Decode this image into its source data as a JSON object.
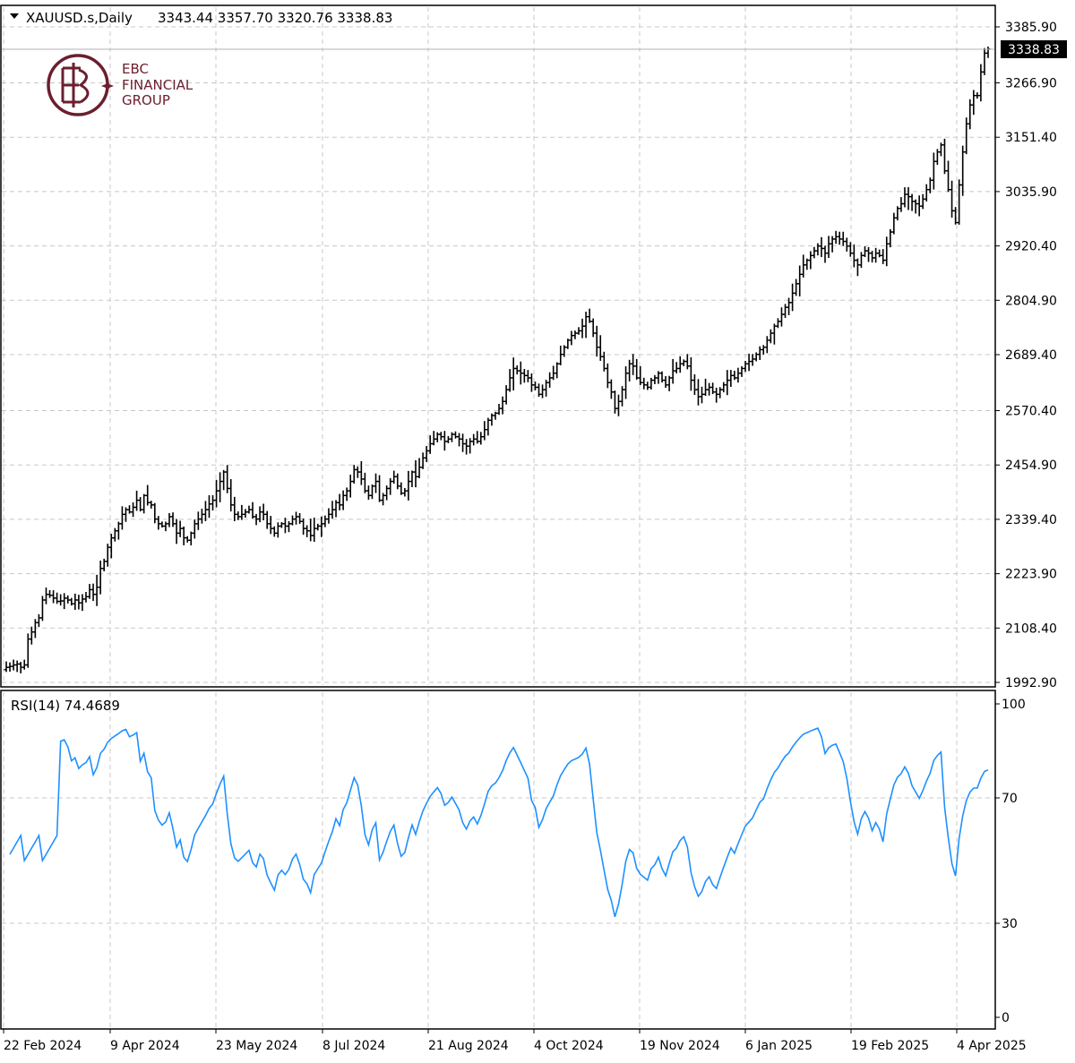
{
  "header": {
    "arrow_icon": "triangle-down-icon",
    "symbol": "XAUUSD.s,Daily",
    "ohlc": "3343.44 3357.70 3320.76 3338.83"
  },
  "logo": {
    "line1": "EBC",
    "line2": "FINANCIAL",
    "line3": "GROUP",
    "color": "#6b1f2e"
  },
  "colors": {
    "bars": "#000000",
    "grid": "#c8c8c8",
    "rsi": "#1e90ff",
    "frame": "#000000",
    "price_tag_bg": "#000000",
    "price_tag_text": "#ffffff"
  },
  "chart_data": [
    {
      "type": "ohlc",
      "series_name": "XAUUSD.s,Daily",
      "y_ticks": [
        "3385.90",
        "3266.90",
        "3151.40",
        "3035.90",
        "2920.40",
        "2804.90",
        "2689.40",
        "2570.40",
        "2454.90",
        "2339.40",
        "2223.90",
        "2108.40",
        "1992.90"
      ],
      "ylim": [
        1992.9,
        3385.9
      ],
      "current_price": "3338.83",
      "grid": true,
      "closes": [
        2025,
        2027,
        2030,
        2032,
        2025,
        2030,
        2085,
        2100,
        2120,
        2130,
        2168,
        2180,
        2178,
        2172,
        2165,
        2166,
        2172,
        2168,
        2160,
        2168,
        2162,
        2170,
        2175,
        2190,
        2180,
        2195,
        2235,
        2250,
        2280,
        2300,
        2315,
        2330,
        2350,
        2360,
        2355,
        2365,
        2380,
        2360,
        2390,
        2375,
        2370,
        2340,
        2330,
        2325,
        2330,
        2345,
        2330,
        2310,
        2320,
        2300,
        2295,
        2310,
        2330,
        2340,
        2350,
        2360,
        2372,
        2380,
        2400,
        2420,
        2440,
        2405,
        2370,
        2350,
        2345,
        2350,
        2355,
        2360,
        2345,
        2340,
        2355,
        2350,
        2330,
        2320,
        2310,
        2325,
        2330,
        2325,
        2330,
        2340,
        2345,
        2335,
        2320,
        2315,
        2305,
        2320,
        2325,
        2330,
        2340,
        2350,
        2360,
        2375,
        2370,
        2390,
        2400,
        2420,
        2445,
        2440,
        2425,
        2400,
        2390,
        2410,
        2420,
        2380,
        2390,
        2405,
        2420,
        2430,
        2410,
        2395,
        2400,
        2420,
        2440,
        2430,
        2450,
        2470,
        2485,
        2500,
        2510,
        2520,
        2515,
        2505,
        2510,
        2520,
        2515,
        2510,
        2500,
        2495,
        2505,
        2510,
        2505,
        2515,
        2530,
        2550,
        2560,
        2565,
        2575,
        2590,
        2615,
        2640,
        2660,
        2655,
        2650,
        2645,
        2640,
        2625,
        2620,
        2605,
        2615,
        2630,
        2640,
        2650,
        2670,
        2690,
        2705,
        2720,
        2730,
        2735,
        2740,
        2750,
        2770,
        2760,
        2735,
        2705,
        2685,
        2660,
        2630,
        2610,
        2575,
        2590,
        2615,
        2650,
        2670,
        2665,
        2640,
        2630,
        2625,
        2620,
        2635,
        2640,
        2650,
        2635,
        2625,
        2640,
        2655,
        2660,
        2670,
        2675,
        2665,
        2635,
        2615,
        2600,
        2605,
        2615,
        2620,
        2610,
        2605,
        2615,
        2625,
        2635,
        2645,
        2640,
        2650,
        2660,
        2670,
        2675,
        2680,
        2690,
        2700,
        2705,
        2720,
        2735,
        2750,
        2760,
        2775,
        2790,
        2800,
        2820,
        2840,
        2860,
        2880,
        2890,
        2900,
        2910,
        2920,
        2915,
        2905,
        2925,
        2935,
        2940,
        2935,
        2930,
        2920,
        2905,
        2890,
        2880,
        2900,
        2910,
        2905,
        2895,
        2905,
        2900,
        2890,
        2925,
        2950,
        2980,
        3000,
        3010,
        3030,
        3025,
        3015,
        3010,
        3005,
        3020,
        3040,
        3060,
        3100,
        3120,
        3135,
        3080,
        3040,
        2995,
        2970,
        3050,
        3120,
        3180,
        3220,
        3240,
        3240,
        3290,
        3330,
        3338.83
      ]
    },
    {
      "type": "line",
      "series_name": "RSI(14) 74.4689",
      "y_ticks": [
        "100",
        "70",
        "30",
        "0"
      ],
      "ylim": [
        0,
        100
      ],
      "grid": true
    }
  ],
  "x_ticks": [
    "22 Feb 2024",
    "9 Apr 2024",
    "23 May 2024",
    "8 Jul 2024",
    "21 Aug 2024",
    "4 Oct 2024",
    "19 Nov 2024",
    "6 Jan 2025",
    "19 Feb 2025",
    "4 Apr 2025"
  ]
}
